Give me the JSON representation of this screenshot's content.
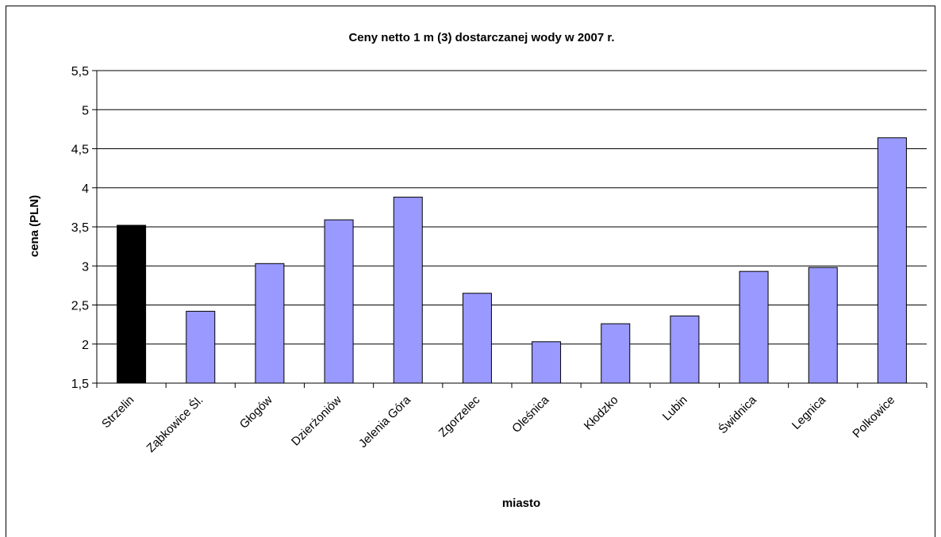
{
  "chart_data": {
    "type": "bar",
    "title": "Ceny netto 1 m (3) dostarczanej wody w 2007 r.",
    "xlabel": "miasto",
    "ylabel": "cena (PLN)",
    "ylim": [
      1.5,
      5.5
    ],
    "yticks": [
      "1,5",
      "2",
      "2,5",
      "3",
      "3,5",
      "4",
      "4,5",
      "5",
      "5,5"
    ],
    "categories": [
      "Strzelin",
      "Ząbkowice Śl.",
      "Głogów",
      "Dzierżoniów",
      "Jelenia Góra",
      "Zgorzelec",
      "Oleśnica",
      "Kłodzko",
      "Lubin",
      "Świdnica",
      "Legnica",
      "Polkowice"
    ],
    "values": [
      3.52,
      2.42,
      3.03,
      3.59,
      3.88,
      2.65,
      2.03,
      2.26,
      2.36,
      2.93,
      2.98,
      4.64
    ],
    "highlight_index": 0,
    "colors": {
      "highlight": "#000000",
      "bar": "#9999ff",
      "bar_border": "#000000",
      "grid": "#000000"
    },
    "grid": true,
    "legend": "none"
  }
}
